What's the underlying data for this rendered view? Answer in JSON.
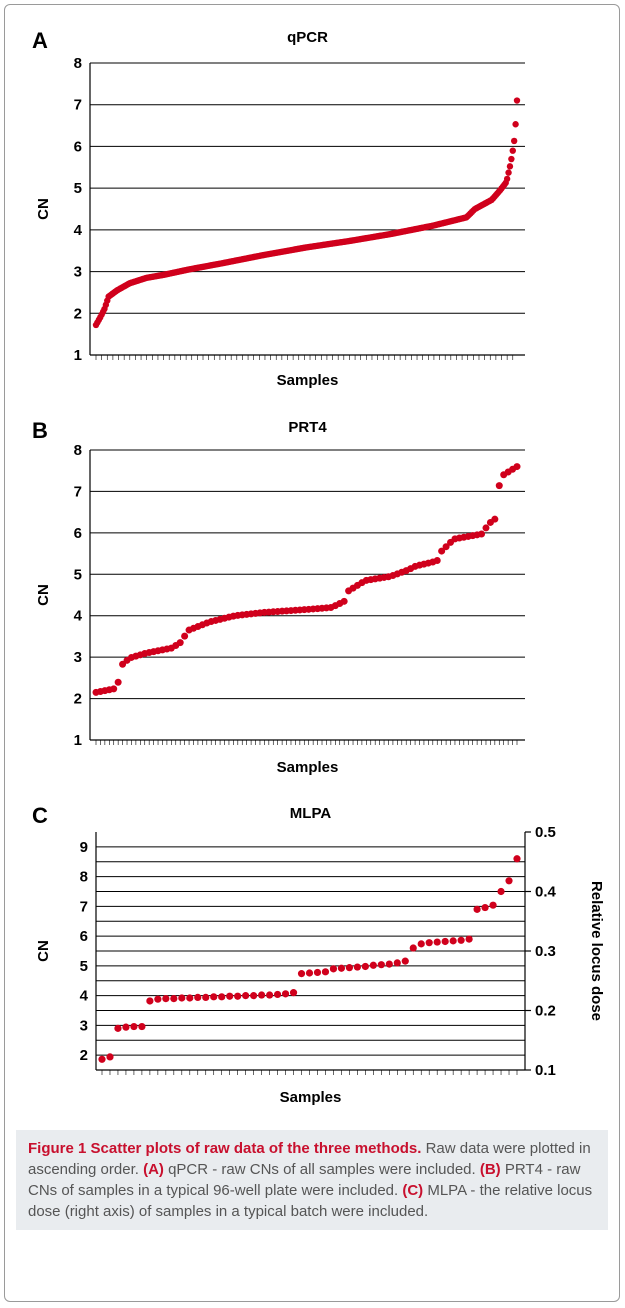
{
  "chart_data": [
    {
      "type": "scatter",
      "panel": "A",
      "title": "qPCR",
      "xlabel": "Samples",
      "ylabel": "CN",
      "ylim": [
        1,
        8
      ],
      "yticks": [
        1,
        2,
        3,
        4,
        5,
        6,
        7,
        8
      ],
      "grid": true,
      "color": "#d0001c",
      "n_points": 300,
      "curve": [
        [
          0,
          1.72
        ],
        [
          0.01,
          1.9
        ],
        [
          0.02,
          2.1
        ],
        [
          0.03,
          2.4
        ],
        [
          0.05,
          2.55
        ],
        [
          0.08,
          2.72
        ],
        [
          0.12,
          2.85
        ],
        [
          0.16,
          2.92
        ],
        [
          0.22,
          3.05
        ],
        [
          0.3,
          3.2
        ],
        [
          0.4,
          3.4
        ],
        [
          0.5,
          3.58
        ],
        [
          0.6,
          3.73
        ],
        [
          0.7,
          3.9
        ],
        [
          0.8,
          4.1
        ],
        [
          0.88,
          4.3
        ],
        [
          0.9,
          4.5
        ],
        [
          0.94,
          4.72
        ],
        [
          0.96,
          4.95
        ],
        [
          0.975,
          5.15
        ],
        [
          0.985,
          5.6
        ],
        [
          0.99,
          5.9
        ],
        [
          0.995,
          6.25
        ],
        [
          1.0,
          7.1
        ]
      ]
    },
    {
      "type": "scatter",
      "panel": "B",
      "title": "PRT4",
      "xlabel": "Samples",
      "ylabel": "CN",
      "ylim": [
        1,
        8
      ],
      "yticks": [
        1,
        2,
        3,
        4,
        5,
        6,
        7,
        8
      ],
      "grid": true,
      "color": "#d0001c",
      "n_points": 96,
      "curve": [
        [
          0,
          2.15
        ],
        [
          0.05,
          2.25
        ],
        [
          0.06,
          2.8
        ],
        [
          0.08,
          2.98
        ],
        [
          0.12,
          3.1
        ],
        [
          0.18,
          3.22
        ],
        [
          0.2,
          3.35
        ],
        [
          0.22,
          3.65
        ],
        [
          0.27,
          3.85
        ],
        [
          0.33,
          4.0
        ],
        [
          0.4,
          4.08
        ],
        [
          0.5,
          4.15
        ],
        [
          0.56,
          4.2
        ],
        [
          0.59,
          4.35
        ],
        [
          0.6,
          4.6
        ],
        [
          0.64,
          4.85
        ],
        [
          0.7,
          4.95
        ],
        [
          0.74,
          5.1
        ],
        [
          0.76,
          5.2
        ],
        [
          0.81,
          5.32
        ],
        [
          0.82,
          5.55
        ],
        [
          0.85,
          5.85
        ],
        [
          0.92,
          5.98
        ],
        [
          0.93,
          6.2
        ],
        [
          0.95,
          6.35
        ],
        [
          0.96,
          7.35
        ],
        [
          1.0,
          7.6
        ]
      ]
    },
    {
      "type": "scatter",
      "panel": "C",
      "title": "MLPA",
      "xlabel": "Samples",
      "ylabel": "CN",
      "y2label": "Relative locus dose",
      "ylim": [
        1.5,
        9.5
      ],
      "yticks": [
        2,
        3,
        4,
        5,
        6,
        7,
        8,
        9
      ],
      "y2lim": [
        0.1,
        0.5
      ],
      "y2ticks": [
        0.1,
        0.2,
        0.3,
        0.4,
        0.5
      ],
      "grid": true,
      "color": "#d0001c",
      "values": [
        0.118,
        0.122,
        0.17,
        0.172,
        0.173,
        0.173,
        0.216,
        0.219,
        0.22,
        0.22,
        0.221,
        0.221,
        0.222,
        0.222,
        0.223,
        0.223,
        0.224,
        0.224,
        0.225,
        0.225,
        0.226,
        0.226,
        0.227,
        0.228,
        0.23,
        0.262,
        0.263,
        0.264,
        0.265,
        0.27,
        0.271,
        0.272,
        0.273,
        0.274,
        0.276,
        0.277,
        0.278,
        0.28,
        0.283,
        0.305,
        0.312,
        0.314,
        0.315,
        0.316,
        0.317,
        0.318,
        0.32,
        0.37,
        0.373,
        0.377,
        0.4,
        0.418,
        0.455
      ]
    }
  ],
  "caption": {
    "title": "Figure 1 Scatter plots of raw data of the three methods.",
    "intro": " Raw data were plotted in ascending order. ",
    "a_label": "(A)",
    "a_text": " qPCR - raw CNs of all samples were included. ",
    "b_label": "(B)",
    "b_text": " PRT4 - raw CNs of samples in a typical 96-well plate were included. ",
    "c_label": "(C)",
    "c_text": " MLPA - the relative locus dose (right axis) of samples in a typical batch were included."
  }
}
